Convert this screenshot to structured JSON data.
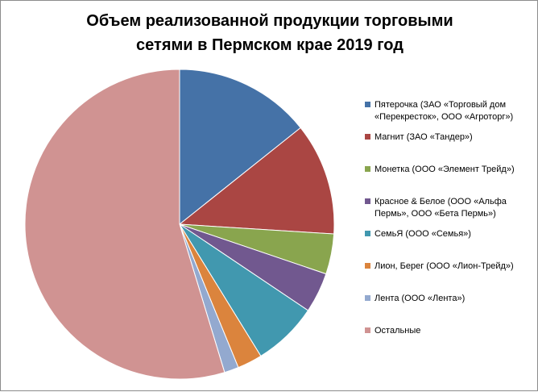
{
  "chart_data": {
    "type": "pie",
    "title_lines": [
      "Объем реализованной продукции торговыми",
      "сетями в Пермском крае 2019 год"
    ],
    "legend_position": "right",
    "start_angle_deg": 0,
    "direction": "clockwise",
    "slices": [
      {
        "label": "Пятерочка (ЗАО «Торговый дом «Перекресток», ООО «Агроторг»)",
        "value": 14.3,
        "color": "#4572A7"
      },
      {
        "label": "Магнит (ЗАО «Тандер»)",
        "value": 11.7,
        "color": "#AA4643"
      },
      {
        "label": "Монетка (ООО «Элемент Трейд»)",
        "value": 4.2,
        "color": "#89A54E"
      },
      {
        "label": "Красное & Белое (ООО «Альфа Пермь», ООО «Бета Пермь»)",
        "value": 4.2,
        "color": "#71588F"
      },
      {
        "label": "СемьЯ (ООО «Семья»)",
        "value": 6.8,
        "color": "#4198AF"
      },
      {
        "label": "Лион, Берег (ООО «Лион-Трейд»)",
        "value": 2.6,
        "color": "#DB843D"
      },
      {
        "label": "Лента (ООО «Лента»)",
        "value": 1.5,
        "color": "#93A9CF"
      },
      {
        "label": "Остальные",
        "value": 54.7,
        "color": "#D09392"
      }
    ]
  }
}
